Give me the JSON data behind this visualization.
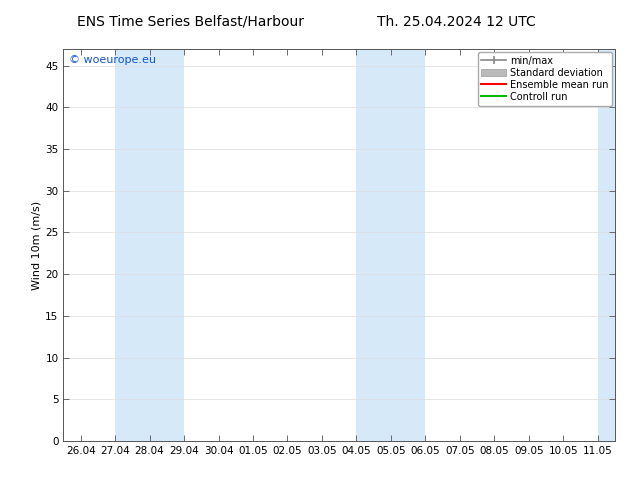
{
  "title_left": "ENS Time Series Belfast/Harbour",
  "title_right": "Th. 25.04.2024 12 UTC",
  "ylabel": "Wind 10m (m/s)",
  "ylim": [
    0,
    47
  ],
  "yticks": [
    0,
    5,
    10,
    15,
    20,
    25,
    30,
    35,
    40,
    45
  ],
  "x_labels": [
    "26.04",
    "27.04",
    "28.04",
    "29.04",
    "30.04",
    "01.05",
    "02.05",
    "03.05",
    "04.05",
    "05.05",
    "06.05",
    "07.05",
    "08.05",
    "09.05",
    "10.05",
    "11.05"
  ],
  "x_positions": [
    0,
    1,
    2,
    3,
    4,
    5,
    6,
    7,
    8,
    9,
    10,
    11,
    12,
    13,
    14,
    15
  ],
  "xlim": [
    -0.5,
    15.5
  ],
  "shaded_bands": [
    {
      "x_start": 1.0,
      "x_end": 3.0
    },
    {
      "x_start": 8.0,
      "x_end": 10.0
    },
    {
      "x_start": 15.0,
      "x_end": 15.5
    }
  ],
  "shaded_color": "#d6e9f8",
  "bg_color": "#ffffff",
  "plot_bg_color": "#ffffff",
  "grid_color": "#dddddd",
  "axis_color": "#555555",
  "watermark_text": "© woeurope.eu",
  "watermark_color": "#1155cc",
  "legend_items": [
    {
      "label": "min/max",
      "color": "#888888",
      "style": "errorbar"
    },
    {
      "label": "Standard deviation",
      "color": "#bbbbbb",
      "style": "filled"
    },
    {
      "label": "Ensemble mean run",
      "color": "#ff0000",
      "style": "line"
    },
    {
      "label": "Controll run",
      "color": "#00bb00",
      "style": "line"
    }
  ],
  "font_size_title": 10,
  "font_size_axis": 8,
  "font_size_tick": 7.5,
  "font_size_legend": 7,
  "font_size_watermark": 8
}
